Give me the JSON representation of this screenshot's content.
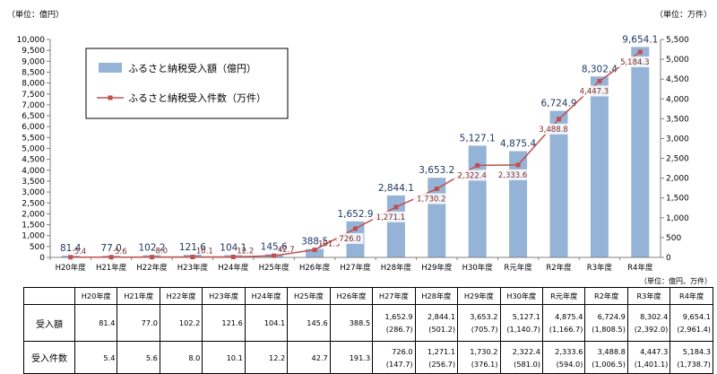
{
  "units": {
    "left_axis": "（単位：億円）",
    "right_axis": "（単位：万件）",
    "table": "（単位：億円、万件）"
  },
  "chart_data": {
    "type": "bar+line",
    "categories": [
      "H20年度",
      "H21年度",
      "H22年度",
      "H23年度",
      "H24年度",
      "H25年度",
      "H26年度",
      "H27年度",
      "H28年度",
      "H29年度",
      "H30年度",
      "R元年度",
      "R2年度",
      "R3年度",
      "R4年度"
    ],
    "series": [
      {
        "name": "ふるさと納税受入額（億円）",
        "type": "bar",
        "axis": "left",
        "color": "#95B3D7",
        "values": [
          81.4,
          77.0,
          102.2,
          121.6,
          104.1,
          145.6,
          388.5,
          1652.9,
          2844.1,
          3653.2,
          5127.1,
          4875.4,
          6724.9,
          8302.4,
          9654.1
        ],
        "labels": [
          "81.4",
          "77.0",
          "102.2",
          "121.6",
          "104.1",
          "145.6",
          "388.5",
          "1,652.9",
          "2,844.1",
          "3,653.2",
          "5,127.1",
          "4,875.4",
          "6,724.9",
          "8,302.4",
          "9,654.1"
        ]
      },
      {
        "name": "ふるさと納税受入件数（万件）",
        "type": "line",
        "axis": "right",
        "color": "#C0504D",
        "values": [
          5.4,
          5.6,
          8.0,
          10.1,
          12.2,
          42.7,
          191.3,
          726.0,
          1271.1,
          1730.2,
          2322.4,
          2333.6,
          3488.8,
          4447.3,
          5184.3
        ],
        "labels": [
          "5.4",
          "5.6",
          "8.0",
          "10.1",
          "12.2",
          "42.7",
          "191.3",
          "726.0",
          "1,271.1",
          "1,730.2",
          "2,322.4",
          "2,333.6",
          "3,488.8",
          "4,447.3",
          "5,184.3"
        ]
      }
    ],
    "left_axis": {
      "ylim": [
        0,
        10000
      ],
      "ticks": [
        "0",
        "500",
        "1,000",
        "1,500",
        "2,000",
        "2,500",
        "3,000",
        "3,500",
        "4,000",
        "4,500",
        "5,000",
        "5,500",
        "6,000",
        "6,500",
        "7,000",
        "7,500",
        "8,000",
        "8,500",
        "9,000",
        "9,500",
        "10,000"
      ]
    },
    "right_axis": {
      "ylim": [
        0,
        5500
      ],
      "ticks": [
        "0",
        "500",
        "1,000",
        "1,500",
        "2,000",
        "2,500",
        "3,000",
        "3,500",
        "4,000",
        "4,500",
        "5,000",
        "5,500"
      ]
    },
    "legend_position": "top-left",
    "grid": false
  },
  "table": {
    "headers": [
      "H20年度",
      "H21年度",
      "H22年度",
      "H23年度",
      "H24年度",
      "H25年度",
      "H26年度",
      "H27年度",
      "H28年度",
      "H29年度",
      "H30年度",
      "R元年度",
      "R2年度",
      "R3年度",
      "R4年度"
    ],
    "rows": [
      {
        "label": "受入額",
        "values": [
          "81.4",
          "77.0",
          "102.2",
          "121.6",
          "104.1",
          "145.6",
          "388.5",
          "1,652.9",
          "2,844.1",
          "3,653.2",
          "5,127.1",
          "4,875.4",
          "6,724.9",
          "8,302.4",
          "9,654.1"
        ],
        "sub": [
          "",
          "",
          "",
          "",
          "",
          "",
          "",
          "(286.7)",
          "(501.2)",
          "(705.7)",
          "(1,140.7)",
          "(1,166.7)",
          "(1,808.5)",
          "(2,392.0)",
          "(2,961.4)"
        ]
      },
      {
        "label": "受入件数",
        "values": [
          "5.4",
          "5.6",
          "8.0",
          "10.1",
          "12.2",
          "42.7",
          "191.3",
          "726.0",
          "1,271.1",
          "1,730.2",
          "2,322.4",
          "2,333.6",
          "3,488.8",
          "4,447.3",
          "5,184.3"
        ],
        "sub": [
          "",
          "",
          "",
          "",
          "",
          "",
          "",
          "(147.7)",
          "(256.7)",
          "(376.1)",
          "(581.0)",
          "(594.0)",
          "(1,006.5)",
          "(1,401.1)",
          "(1,738.7)"
        ]
      }
    ]
  }
}
